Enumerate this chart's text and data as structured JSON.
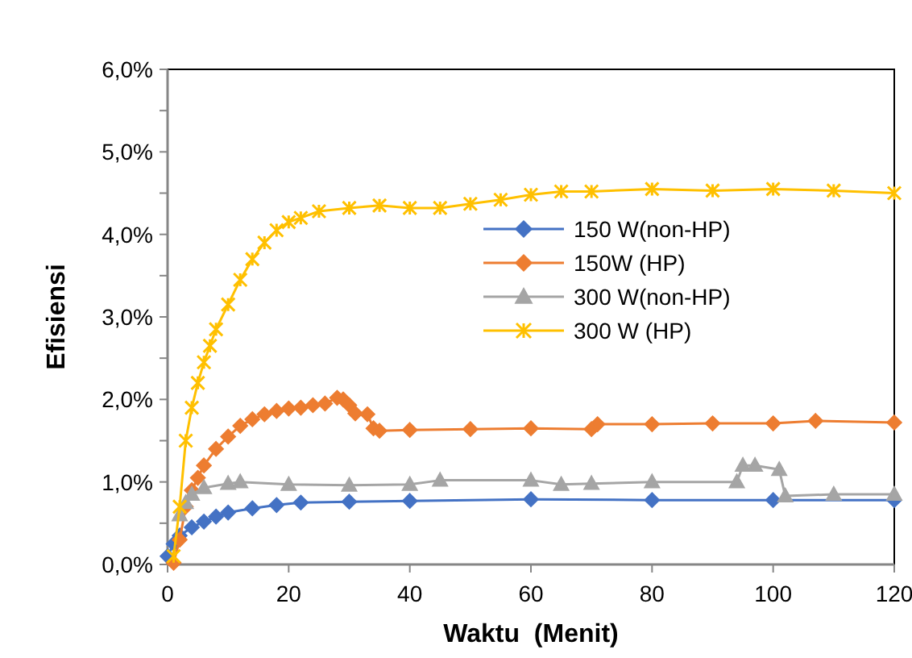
{
  "chart_data": {
    "type": "line",
    "xlabel": "Waktu  (Menit)",
    "ylabel": "Efisiensi",
    "xlim": [
      0,
      120
    ],
    "xticks": [
      0,
      20,
      40,
      60,
      80,
      100,
      120
    ],
    "ylim": [
      0,
      6
    ],
    "yticks": [
      {
        "value": 0,
        "label": "0,0%"
      },
      {
        "value": 1,
        "label": "1,0%"
      },
      {
        "value": 2,
        "label": "2,0%"
      },
      {
        "value": 3,
        "label": "3,0%"
      },
      {
        "value": 4,
        "label": "4,0%"
      },
      {
        "value": 5,
        "label": "5,0%"
      },
      {
        "value": 6,
        "label": "6,0%"
      }
    ],
    "legend": "right",
    "grid": false,
    "series": [
      {
        "name": "150 W(non-HP)",
        "color": "#4472c4",
        "marker": "diamond",
        "x": [
          0,
          1,
          2,
          4,
          6,
          8,
          10,
          14,
          18,
          22,
          30,
          40,
          60,
          80,
          100,
          120
        ],
        "values": [
          0.1,
          0.25,
          0.35,
          0.45,
          0.52,
          0.58,
          0.63,
          0.68,
          0.72,
          0.75,
          0.76,
          0.77,
          0.79,
          0.78,
          0.78,
          0.78
        ]
      },
      {
        "name": "150W (HP)",
        "color": "#ed7d31",
        "marker": "diamond",
        "x": [
          1,
          2,
          3,
          4,
          5,
          6,
          8,
          10,
          12,
          14,
          16,
          18,
          20,
          22,
          24,
          26,
          28,
          29,
          30,
          31,
          33,
          34,
          35,
          40,
          50,
          60,
          70,
          71,
          80,
          90,
          100,
          107,
          120
        ],
        "values": [
          0.02,
          0.3,
          0.7,
          0.9,
          1.05,
          1.2,
          1.4,
          1.55,
          1.68,
          1.76,
          1.82,
          1.86,
          1.89,
          1.9,
          1.93,
          1.95,
          2.02,
          2.0,
          1.93,
          1.83,
          1.82,
          1.65,
          1.62,
          1.63,
          1.64,
          1.65,
          1.64,
          1.7,
          1.7,
          1.71,
          1.71,
          1.74,
          1.72
        ]
      },
      {
        "name": "300 W(non-HP)",
        "color": "#a5a5a5",
        "marker": "triangle",
        "x": [
          2,
          3,
          4,
          6,
          10,
          12,
          20,
          30,
          40,
          45,
          60,
          65,
          70,
          80,
          94,
          95,
          97,
          101,
          102,
          110,
          120
        ],
        "values": [
          0.6,
          0.75,
          0.85,
          0.93,
          0.98,
          1.0,
          0.97,
          0.96,
          0.97,
          1.02,
          1.02,
          0.97,
          0.98,
          1.0,
          1.0,
          1.2,
          1.2,
          1.15,
          0.83,
          0.85,
          0.85
        ]
      },
      {
        "name": "300 W (HP)",
        "color": "#ffc000",
        "marker": "cross",
        "x": [
          1,
          2,
          3,
          4,
          5,
          6,
          7,
          8,
          10,
          12,
          14,
          16,
          18,
          20,
          22,
          25,
          30,
          35,
          40,
          45,
          50,
          55,
          60,
          65,
          70,
          80,
          90,
          100,
          110,
          120
        ],
        "values": [
          0.1,
          0.7,
          1.5,
          1.9,
          2.2,
          2.45,
          2.65,
          2.85,
          3.15,
          3.45,
          3.7,
          3.9,
          4.05,
          4.15,
          4.2,
          4.28,
          4.32,
          4.35,
          4.32,
          4.32,
          4.37,
          4.42,
          4.48,
          4.52,
          4.52,
          4.55,
          4.53,
          4.55,
          4.53,
          4.5
        ]
      }
    ]
  }
}
